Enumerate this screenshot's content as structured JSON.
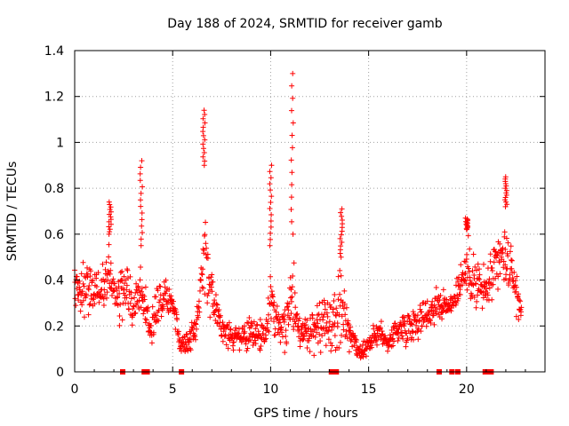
{
  "chart_data": {
    "type": "scatter",
    "title": "Day 188 of 2024, SRMTID for receiver gamb",
    "xlabel": "GPS time / hours",
    "ylabel": "SRMTID / TECUs",
    "xlim": [
      0,
      24
    ],
    "ylim": [
      0,
      1.4
    ],
    "xticks": [
      0,
      5,
      10,
      15,
      20
    ],
    "yticks": [
      0,
      0.2,
      0.4,
      0.6,
      0.8,
      1,
      1.2,
      1.4
    ],
    "xtick_labels": [
      "0",
      "5",
      "10",
      "15",
      "20"
    ],
    "ytick_labels": [
      "0",
      "0.2",
      "0.4",
      "0.6",
      "0.8",
      "1",
      "1.2",
      "1.4"
    ],
    "grid": true,
    "marker": "+",
    "series_color": "#ff0000",
    "gap_marker_hours": [
      2.45,
      3.55,
      3.7,
      5.45,
      13.1,
      13.35,
      18.6,
      19.25,
      19.55,
      20.95,
      21.1,
      21.25
    ],
    "envelope": [
      {
        "t": 0.0,
        "lo": 0.22,
        "hi": 0.52,
        "spike": null
      },
      {
        "t": 0.5,
        "lo": 0.2,
        "hi": 0.55,
        "spike": null
      },
      {
        "t": 1.0,
        "lo": 0.22,
        "hi": 0.48,
        "spike": null
      },
      {
        "t": 1.5,
        "lo": 0.2,
        "hi": 0.5,
        "spike": null
      },
      {
        "t": 1.8,
        "lo": 0.24,
        "hi": 0.6,
        "spike": 0.74
      },
      {
        "t": 2.2,
        "lo": 0.18,
        "hi": 0.45,
        "spike": null
      },
      {
        "t": 2.6,
        "lo": 0.2,
        "hi": 0.55,
        "spike": null
      },
      {
        "t": 3.0,
        "lo": 0.14,
        "hi": 0.38,
        "spike": null
      },
      {
        "t": 3.4,
        "lo": 0.18,
        "hi": 0.55,
        "spike": 0.92
      },
      {
        "t": 3.8,
        "lo": 0.1,
        "hi": 0.3,
        "spike": null
      },
      {
        "t": 4.2,
        "lo": 0.15,
        "hi": 0.42,
        "spike": null
      },
      {
        "t": 4.6,
        "lo": 0.2,
        "hi": 0.49,
        "spike": null
      },
      {
        "t": 5.0,
        "lo": 0.22,
        "hi": 0.4,
        "spike": null
      },
      {
        "t": 5.4,
        "lo": 0.05,
        "hi": 0.18,
        "spike": null
      },
      {
        "t": 5.8,
        "lo": 0.06,
        "hi": 0.2,
        "spike": null
      },
      {
        "t": 6.2,
        "lo": 0.1,
        "hi": 0.28,
        "spike": null
      },
      {
        "t": 6.6,
        "lo": 0.25,
        "hi": 0.9,
        "spike": 1.14
      },
      {
        "t": 6.9,
        "lo": 0.18,
        "hi": 0.52,
        "spike": null
      },
      {
        "t": 7.3,
        "lo": 0.14,
        "hi": 0.32,
        "spike": null
      },
      {
        "t": 8.0,
        "lo": 0.07,
        "hi": 0.22,
        "spike": null
      },
      {
        "t": 8.6,
        "lo": 0.06,
        "hi": 0.24,
        "spike": null
      },
      {
        "t": 9.2,
        "lo": 0.08,
        "hi": 0.26,
        "spike": null
      },
      {
        "t": 9.7,
        "lo": 0.07,
        "hi": 0.22,
        "spike": null
      },
      {
        "t": 10.0,
        "lo": 0.1,
        "hi": 0.55,
        "spike": 0.9
      },
      {
        "t": 10.4,
        "lo": 0.08,
        "hi": 0.32,
        "spike": null
      },
      {
        "t": 10.8,
        "lo": 0.05,
        "hi": 0.4,
        "spike": null
      },
      {
        "t": 11.1,
        "lo": 0.1,
        "hi": 0.6,
        "spike": 1.3
      },
      {
        "t": 11.5,
        "lo": 0.05,
        "hi": 0.32,
        "spike": null
      },
      {
        "t": 12.0,
        "lo": 0.04,
        "hi": 0.3,
        "spike": null
      },
      {
        "t": 12.5,
        "lo": 0.03,
        "hi": 0.4,
        "spike": null
      },
      {
        "t": 13.0,
        "lo": 0.04,
        "hi": 0.35,
        "spike": null
      },
      {
        "t": 13.6,
        "lo": 0.05,
        "hi": 0.5,
        "spike": 0.71
      },
      {
        "t": 14.0,
        "lo": 0.08,
        "hi": 0.28,
        "spike": null
      },
      {
        "t": 14.5,
        "lo": 0.02,
        "hi": 0.12,
        "spike": null
      },
      {
        "t": 15.0,
        "lo": 0.05,
        "hi": 0.18,
        "spike": null
      },
      {
        "t": 15.5,
        "lo": 0.1,
        "hi": 0.26,
        "spike": null
      },
      {
        "t": 16.0,
        "lo": 0.05,
        "hi": 0.2,
        "spike": null
      },
      {
        "t": 16.5,
        "lo": 0.1,
        "hi": 0.28,
        "spike": null
      },
      {
        "t": 17.0,
        "lo": 0.1,
        "hi": 0.3,
        "spike": null
      },
      {
        "t": 17.5,
        "lo": 0.12,
        "hi": 0.33,
        "spike": null
      },
      {
        "t": 18.0,
        "lo": 0.15,
        "hi": 0.35,
        "spike": null
      },
      {
        "t": 18.5,
        "lo": 0.2,
        "hi": 0.42,
        "spike": null
      },
      {
        "t": 19.0,
        "lo": 0.2,
        "hi": 0.35,
        "spike": null
      },
      {
        "t": 19.5,
        "lo": 0.25,
        "hi": 0.45,
        "spike": null
      },
      {
        "t": 20.0,
        "lo": 0.3,
        "hi": 0.62,
        "spike": 0.67
      },
      {
        "t": 20.5,
        "lo": 0.2,
        "hi": 0.55,
        "spike": null
      },
      {
        "t": 21.0,
        "lo": 0.2,
        "hi": 0.5,
        "spike": null
      },
      {
        "t": 21.5,
        "lo": 0.25,
        "hi": 0.65,
        "spike": null
      },
      {
        "t": 22.0,
        "lo": 0.3,
        "hi": 0.72,
        "spike": 0.85
      },
      {
        "t": 22.4,
        "lo": 0.25,
        "hi": 0.55,
        "spike": null
      },
      {
        "t": 22.8,
        "lo": 0.18,
        "hi": 0.32,
        "spike": null
      }
    ]
  }
}
